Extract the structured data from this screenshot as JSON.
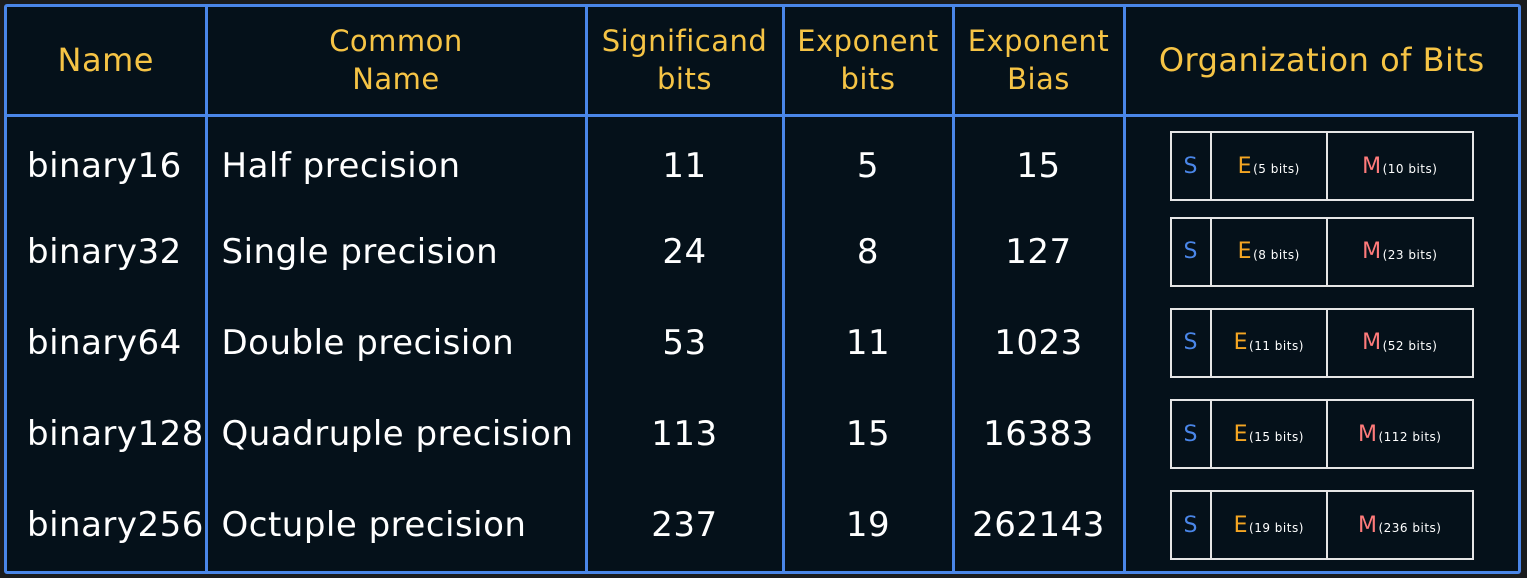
{
  "headers": [
    {
      "line1": "Name",
      "line2": ""
    },
    {
      "line1": "Common",
      "line2": "Name"
    },
    {
      "line1": "Significand",
      "line2": "bits"
    },
    {
      "line1": "Exponent",
      "line2": "bits"
    },
    {
      "line1": "Exponent",
      "line2": "Bias"
    },
    {
      "line1": "Organization of Bits",
      "line2": ""
    }
  ],
  "sign_label": "S",
  "exponent_label": "E",
  "mantissa_label": "M",
  "rows": [
    {
      "name": "binary16",
      "common": "Half precision",
      "significand": "11",
      "exponent": "5",
      "bias": "15",
      "e_bits": "(5 bits)",
      "m_bits": "(10 bits)"
    },
    {
      "name": "binary32",
      "common": "Single precision",
      "significand": "24",
      "exponent": "8",
      "bias": "127",
      "e_bits": "(8 bits)",
      "m_bits": "(23 bits)"
    },
    {
      "name": "binary64",
      "common": "Double precision",
      "significand": "53",
      "exponent": "11",
      "bias": "1023",
      "e_bits": "(11 bits)",
      "m_bits": "(52 bits)"
    },
    {
      "name": "binary128",
      "common": "Quadruple precision",
      "significand": "113",
      "exponent": "15",
      "bias": "16383",
      "e_bits": "(15 bits)",
      "m_bits": "(112 bits)"
    },
    {
      "name": "binary256",
      "common": "Octuple precision",
      "significand": "237",
      "exponent": "19",
      "bias": "262143",
      "e_bits": "(19 bits)",
      "m_bits": "(236 bits)"
    }
  ],
  "colors": {
    "border": "#4a86e8",
    "header_text": "#f6c445",
    "sign": "#4a86e8",
    "exponent": "#f5a623",
    "mantissa": "#ff7b7b"
  }
}
